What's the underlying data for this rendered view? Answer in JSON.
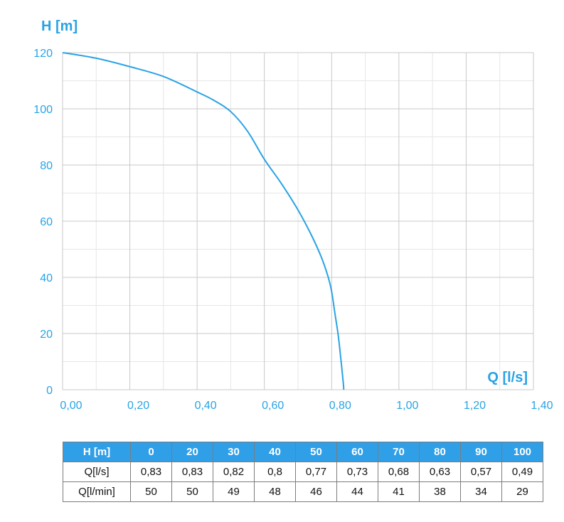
{
  "chart_data": {
    "type": "line",
    "xlabel": "Q [l/s]",
    "ylabel": "H [m]",
    "xlim": [
      0,
      1.4
    ],
    "ylim": [
      0,
      120
    ],
    "x_ticks": [
      "0,00",
      "0,20",
      "0,40",
      "0,60",
      "0,80",
      "1,00",
      "1,20",
      "1,40"
    ],
    "y_ticks": [
      "0",
      "20",
      "40",
      "60",
      "80",
      "100",
      "120"
    ],
    "grid": true,
    "line_color": "#29a3e4",
    "series": [
      {
        "x": [
          0,
          0.1,
          0.2,
          0.3,
          0.4,
          0.45,
          0.5,
          0.55,
          0.6,
          0.65,
          0.7,
          0.74,
          0.77,
          0.79,
          0.8,
          0.81,
          0.82,
          0.83,
          0.835,
          0.836
        ],
        "y": [
          120,
          118,
          115,
          111.5,
          106,
          103,
          99,
          92,
          82,
          73.5,
          64,
          55,
          47,
          40,
          35,
          27,
          19,
          8,
          2,
          0
        ]
      }
    ]
  },
  "table": {
    "header": {
      "label": "H [m]",
      "values": [
        "0",
        "20",
        "30",
        "40",
        "50",
        "60",
        "70",
        "80",
        "90",
        "100"
      ]
    },
    "rows": [
      {
        "label": "Q[l/s]",
        "values": [
          "0,83",
          "0,83",
          "0,82",
          "0,8",
          "0,77",
          "0,73",
          "0,68",
          "0,63",
          "0,57",
          "0,49"
        ]
      },
      {
        "label": "Q[l/min]",
        "values": [
          "50",
          "50",
          "49",
          "48",
          "46",
          "44",
          "41",
          "38",
          "34",
          "29"
        ]
      }
    ]
  }
}
